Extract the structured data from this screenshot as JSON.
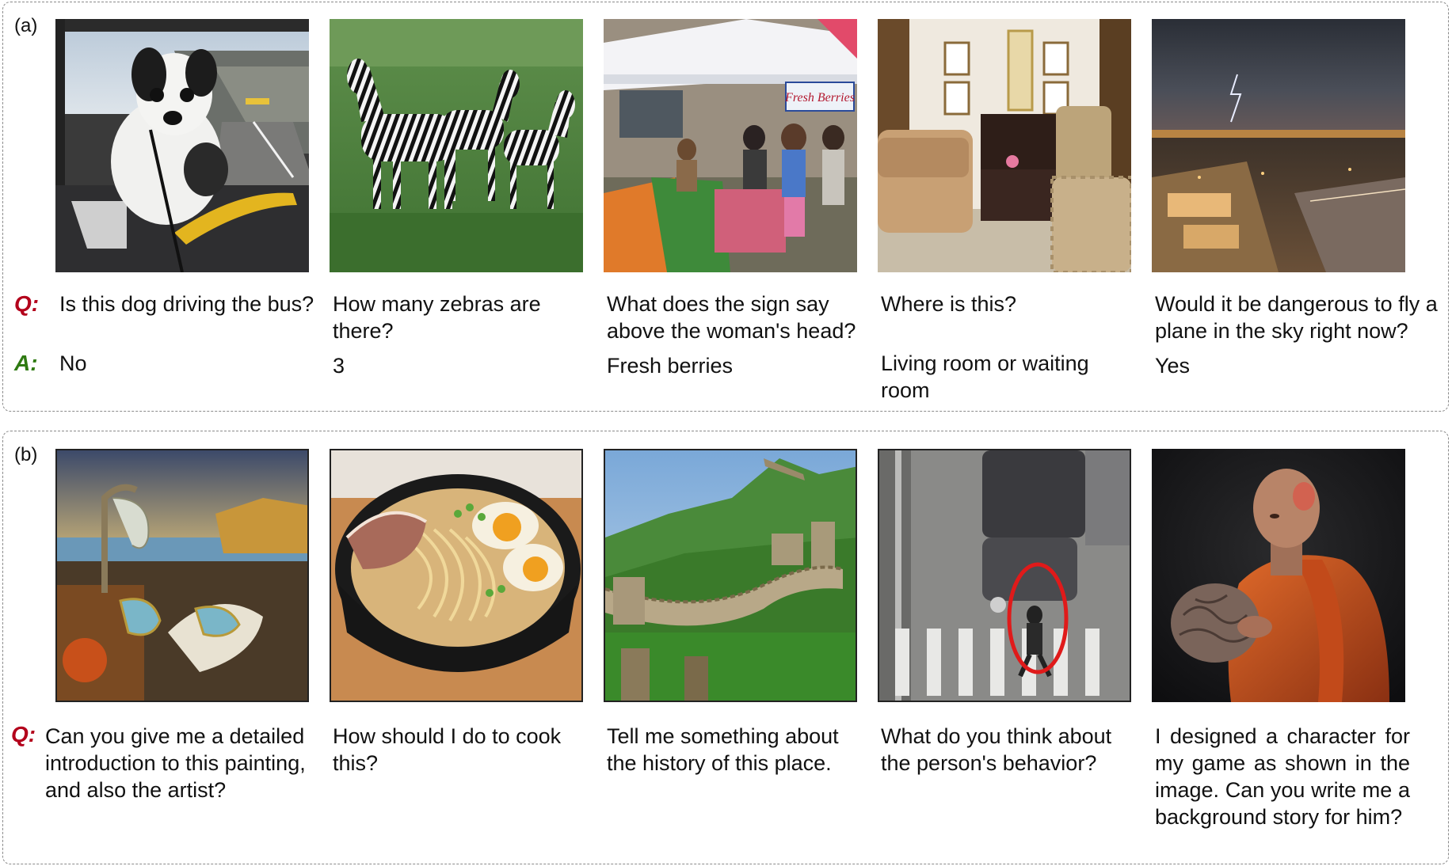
{
  "panel_a": {
    "label": "(a)",
    "q_prefix": "Q:",
    "a_prefix": "A:",
    "items": [
      {
        "question": "Is this dog driving the bus?",
        "answer": "No"
      },
      {
        "question": "How many zebras are there?",
        "answer": "3"
      },
      {
        "question": "What does the sign say above the woman's head?",
        "answer": "Fresh berries",
        "sign_text": "Fresh Berries"
      },
      {
        "question": "Where is this?",
        "answer": "Living room or waiting room"
      },
      {
        "question": "Would it be dangerous to fly a plane in the sky right now?",
        "answer": "Yes"
      }
    ]
  },
  "panel_b": {
    "label": "(b)",
    "q_prefix": "Q:",
    "items": [
      {
        "question": "Can you give me a detailed introduction to this painting, and also the artist?"
      },
      {
        "question": "How should I do to cook this?"
      },
      {
        "question": "Tell me something about the history of this place."
      },
      {
        "question": "What do you think about the person's behavior?"
      },
      {
        "question": "I designed a character for my game as shown in the image. Can you write me a background story for him?"
      }
    ]
  },
  "colors": {
    "q_prefix": "#b3001b",
    "a_prefix": "#2f7a12",
    "border": "#8a8a8a"
  },
  "icons": [
    "dog-on-bus-photo",
    "zebras-photo",
    "market-photo",
    "living-room-photo",
    "airport-storm-photo",
    "melting-clocks-painting",
    "ramen-bowl-photo",
    "great-wall-photo",
    "crosswalk-cctv-photo",
    "monk-character-render"
  ]
}
